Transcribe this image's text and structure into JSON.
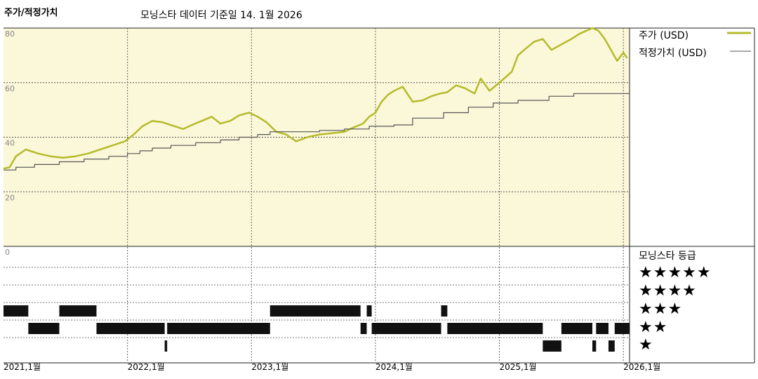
{
  "header": {
    "heading": "주가/적정가치",
    "subtitle": "모닝스타 데이터 기준일 14. 1월 2026"
  },
  "legend": {
    "price": "주가 (USD)",
    "fair_value": "적정가치 (USD)"
  },
  "rating_panel": {
    "title": "모닝스타 등급",
    "stars": [
      "★★★★★",
      "★★★★",
      "★★★",
      "★★",
      "★"
    ]
  },
  "colors": {
    "price_line": "#b5bb2a",
    "fair_value_line": "#555555",
    "plot_background": "#fbf7d9",
    "rating_bar": "#111111"
  },
  "chart_data": {
    "type": "line",
    "ylim": [
      0,
      80
    ],
    "y_ticks": [
      "80",
      "60",
      "40",
      "20",
      "0"
    ],
    "x_ticks": [
      "2021,1월",
      "2022,1월",
      "2023,1월",
      "2024,1월",
      "2025,1월",
      "2026,1월"
    ],
    "xlim": [
      2021.0,
      2026.05
    ],
    "series": [
      {
        "key": "price",
        "x": [
          2021.0,
          2021.05,
          2021.1,
          2021.18,
          2021.28,
          2021.38,
          2021.48,
          2021.58,
          2021.68,
          2021.78,
          2021.88,
          2021.98,
          2022.05,
          2022.12,
          2022.2,
          2022.28,
          2022.38,
          2022.45,
          2022.52,
          2022.6,
          2022.68,
          2022.75,
          2022.83,
          2022.9,
          2022.98,
          2023.05,
          2023.12,
          2023.2,
          2023.28,
          2023.36,
          2023.45,
          2023.55,
          2023.65,
          2023.75,
          2023.82,
          2023.9,
          2023.95,
          2024.0,
          2024.05,
          2024.1,
          2024.15,
          2024.22,
          2024.3,
          2024.38,
          2024.45,
          2024.52,
          2024.58,
          2024.65,
          2024.72,
          2024.8,
          2024.85,
          2024.92,
          2025.0,
          2025.05,
          2025.1,
          2025.15,
          2025.2,
          2025.28,
          2025.35,
          2025.42,
          2025.5,
          2025.58,
          2025.65,
          2025.7,
          2025.75,
          2025.8,
          2025.85,
          2025.9,
          2025.95,
          2026.0,
          2026.03
        ],
        "y": [
          28.5,
          29,
          33,
          35.5,
          34,
          33,
          32.5,
          33,
          34,
          35.5,
          37,
          38.5,
          41,
          44,
          46,
          45.5,
          44,
          43,
          44.5,
          46,
          47.5,
          45,
          46,
          48,
          49,
          47.5,
          45.5,
          42,
          41,
          38.5,
          40,
          41,
          41.5,
          42,
          43.5,
          45,
          47.5,
          49,
          53,
          55.5,
          57,
          58.5,
          53,
          53.5,
          55,
          56,
          56.5,
          59,
          58,
          56,
          61.5,
          57,
          60,
          62,
          64,
          70,
          72,
          75,
          76,
          72,
          74,
          76,
          78,
          79,
          80,
          79,
          76,
          72,
          68,
          71,
          69
        ]
      },
      {
        "key": "fair_value",
        "x": [
          2021.0,
          2021.1,
          2021.25,
          2021.45,
          2021.65,
          2021.85,
          2022.0,
          2022.1,
          2022.2,
          2022.35,
          2022.55,
          2022.75,
          2022.9,
          2023.05,
          2023.15,
          2023.35,
          2023.55,
          2023.75,
          2023.95,
          2024.15,
          2024.3,
          2024.55,
          2024.75,
          2024.95,
          2025.15,
          2025.4,
          2025.6,
          2026.05
        ],
        "y": [
          28,
          29,
          30,
          31,
          32,
          33,
          34,
          35,
          36,
          37,
          38,
          39,
          40,
          41,
          42,
          42,
          42.5,
          43,
          44,
          44.5,
          47,
          49,
          51,
          52.5,
          53.5,
          55,
          56,
          56
        ]
      }
    ]
  },
  "rating_bars": {
    "5": [],
    "4": [],
    "3": [
      [
        2021.0,
        2021.2
      ],
      [
        2021.45,
        2021.75
      ],
      [
        2023.15,
        2023.88
      ],
      [
        2023.93,
        2023.97
      ],
      [
        2024.53,
        2024.58
      ]
    ],
    "2": [
      [
        2021.2,
        2021.45
      ],
      [
        2021.75,
        2022.3
      ],
      [
        2022.32,
        2023.15
      ],
      [
        2023.88,
        2023.93
      ],
      [
        2023.97,
        2024.53
      ],
      [
        2024.58,
        2025.35
      ],
      [
        2025.5,
        2025.75
      ],
      [
        2025.78,
        2025.88
      ],
      [
        2025.93,
        2026.05
      ]
    ],
    "1": [
      [
        2022.3,
        2022.32
      ],
      [
        2025.35,
        2025.5
      ],
      [
        2025.75,
        2025.78
      ],
      [
        2025.88,
        2025.93
      ]
    ]
  }
}
